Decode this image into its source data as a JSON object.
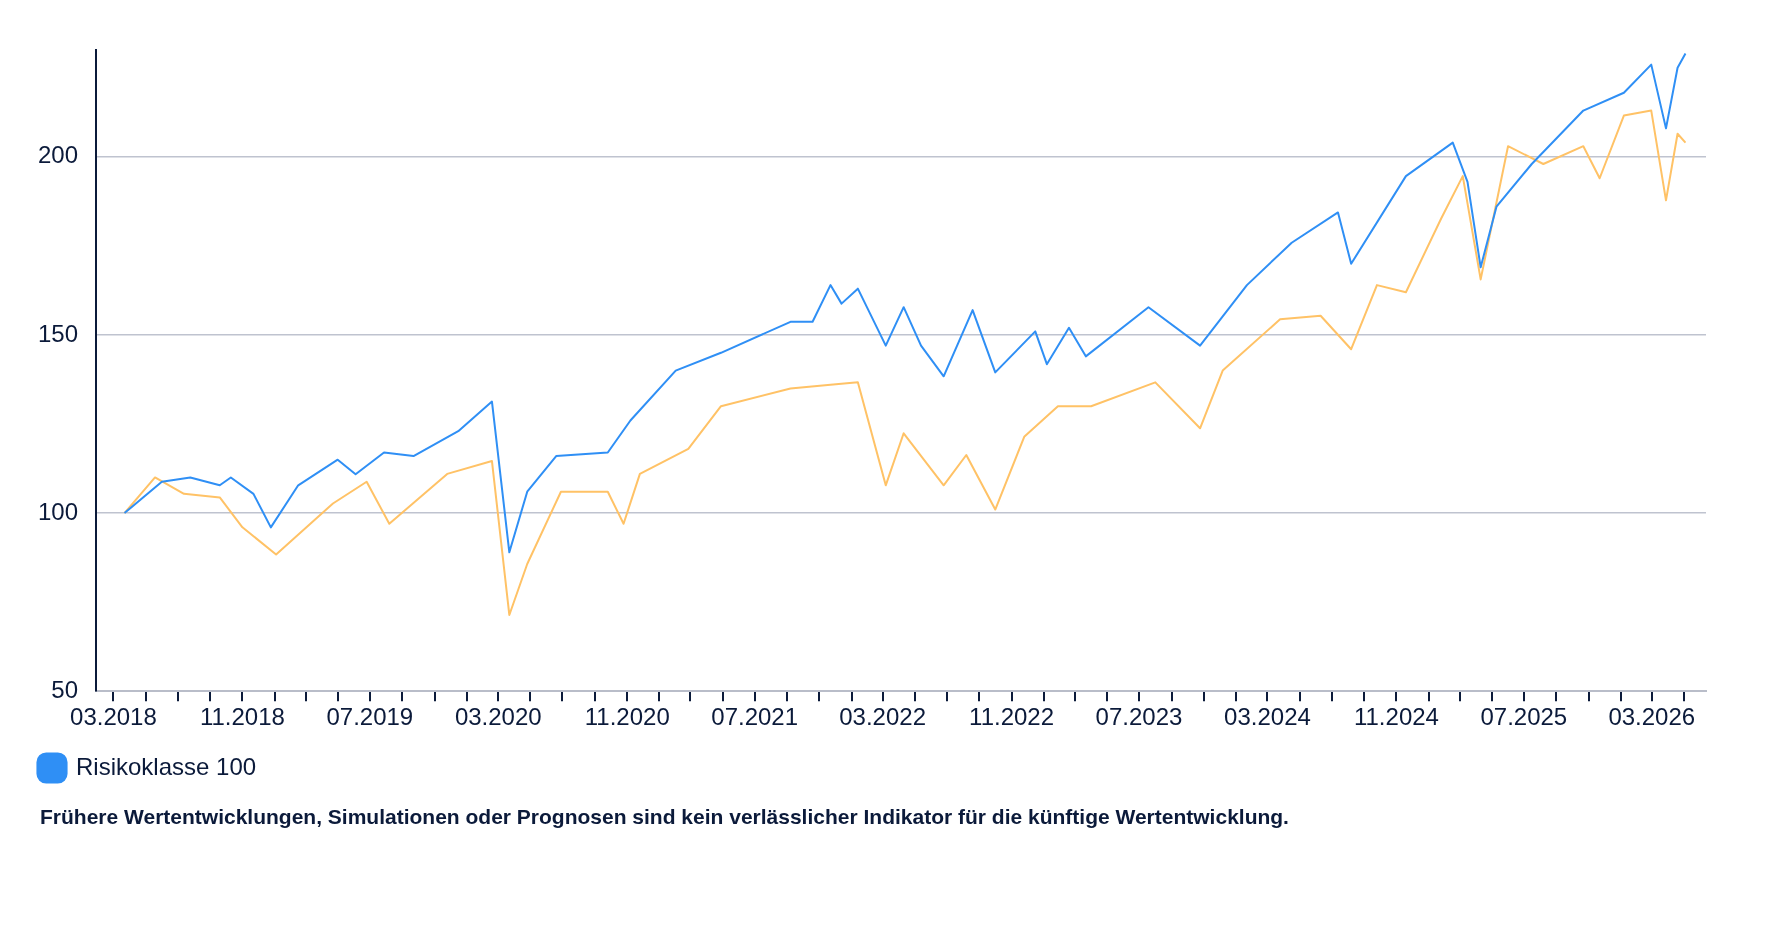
{
  "chart_data": {
    "type": "line",
    "annotations": [
      "Frühere Wertentwicklungen, Simulationen oder Prognosen sind kein verlässlicher Indikator für die künftige Wertentwicklung."
    ],
    "xlim": [
      "2018-01-27",
      "2026-06-12"
    ],
    "xticks": [
      {
        "value": "2018-03",
        "label": "03.2018"
      },
      {
        "value": "2018-05",
        "label": null
      },
      {
        "value": "2018-07",
        "label": null
      },
      {
        "value": "2018-09",
        "label": null
      },
      {
        "value": "2018-11",
        "label": "11.2018"
      },
      {
        "value": "2019-01",
        "label": null
      },
      {
        "value": "2019-03",
        "label": null
      },
      {
        "value": "2019-05",
        "label": null
      },
      {
        "value": "2019-07",
        "label": "07.2019"
      },
      {
        "value": "2019-09",
        "label": null
      },
      {
        "value": "2019-11",
        "label": null
      },
      {
        "value": "2020-01",
        "label": null
      },
      {
        "value": "2020-03",
        "label": "03.2020"
      },
      {
        "value": "2020-05",
        "label": null
      },
      {
        "value": "2020-07",
        "label": null
      },
      {
        "value": "2020-09",
        "label": null
      },
      {
        "value": "2020-11",
        "label": "11.2020"
      },
      {
        "value": "2021-01",
        "label": null
      },
      {
        "value": "2021-03",
        "label": null
      },
      {
        "value": "2021-05",
        "label": null
      },
      {
        "value": "2021-07",
        "label": "07.2021"
      },
      {
        "value": "2021-09",
        "label": null
      },
      {
        "value": "2021-11",
        "label": null
      },
      {
        "value": "2022-01",
        "label": null
      },
      {
        "value": "2022-03",
        "label": "03.2022"
      },
      {
        "value": "2022-05",
        "label": null
      },
      {
        "value": "2022-07",
        "label": null
      },
      {
        "value": "2022-09",
        "label": null
      },
      {
        "value": "2022-11",
        "label": "11.2022"
      },
      {
        "value": "2023-01",
        "label": null
      },
      {
        "value": "2023-03",
        "label": null
      },
      {
        "value": "2023-05",
        "label": null
      },
      {
        "value": "2023-07",
        "label": "07.2023"
      },
      {
        "value": "2023-09",
        "label": null
      },
      {
        "value": "2023-11",
        "label": null
      },
      {
        "value": "2024-01",
        "label": null
      },
      {
        "value": "2024-03",
        "label": "03.2024"
      },
      {
        "value": "2024-05",
        "label": null
      },
      {
        "value": "2024-07",
        "label": null
      },
      {
        "value": "2024-09",
        "label": null
      },
      {
        "value": "2024-11",
        "label": "11.2024"
      },
      {
        "value": "2025-01",
        "label": null
      },
      {
        "value": "2025-03",
        "label": null
      },
      {
        "value": "2025-05",
        "label": null
      },
      {
        "value": "2025-07",
        "label": "07.2025"
      },
      {
        "value": "2025-09",
        "label": null
      },
      {
        "value": "2025-11",
        "label": null
      },
      {
        "value": "2026-01",
        "label": null
      },
      {
        "value": "2026-03",
        "label": "03.2026"
      },
      {
        "value": "2026-05",
        "label": null
      }
    ],
    "ylim": [
      50,
      230
    ],
    "yticks": [
      50,
      100,
      150,
      200
    ],
    "grid": "y",
    "legend": "bottom left",
    "marker": "none",
    "line_style": "solid",
    "series": [
      {
        "name": "Risikoklasse 100",
        "color": "#2f8ff5",
        "x": [
          "2018-03-22",
          "2018-06-01",
          "2018-07-25",
          "2018-09-19",
          "2018-10-10",
          "2018-11-22",
          "2018-12-25",
          "2019-02-15",
          "2019-05-01",
          "2019-06-04",
          "2019-07-28",
          "2019-09-22",
          "2019-12-16",
          "2020-02-18",
          "2020-03-22",
          "2020-04-25",
          "2020-06-19",
          "2020-09-25",
          "2020-11-07",
          "2021-02-01",
          "2021-04-28",
          "2021-09-07",
          "2021-10-19",
          "2021-11-22",
          "2021-12-13",
          "2022-01-13",
          "2022-03-07",
          "2022-04-10",
          "2022-05-13",
          "2022-06-25",
          "2022-08-19",
          "2022-10-01",
          "2022-12-16",
          "2023-01-07",
          "2023-02-18",
          "2023-03-22",
          "2023-07-19",
          "2023-10-25",
          "2024-01-22",
          "2024-04-16",
          "2024-07-13",
          "2024-08-07",
          "2024-11-19",
          "2025-02-16",
          "2025-03-16",
          "2025-04-10",
          "2025-05-10",
          "2025-07-16",
          "2025-10-22",
          "2026-01-07",
          "2026-02-28",
          "2026-03-28",
          "2026-04-19",
          "2026-05-04"
        ],
        "values": [
          100,
          108.8,
          110,
          107.8,
          110,
          105.4,
          96,
          107.8,
          115,
          110.9,
          117,
          116,
          123,
          131.3,
          89,
          106,
          116,
          117,
          126,
          140,
          145,
          153.7,
          153.7,
          164,
          158.8,
          163,
          147,
          157.8,
          147,
          138.4,
          157,
          139.5,
          151,
          141.8,
          152,
          144,
          157.8,
          147,
          164,
          175.9,
          184.4,
          170,
          194.6,
          204,
          193,
          169,
          186,
          198,
          213,
          218,
          225.9,
          208,
          225,
          229
        ]
      },
      {
        "color": "#ffc266",
        "x": [
          "2018-03-22",
          "2018-05-19",
          "2018-07-13",
          "2018-09-19",
          "2018-11-01",
          "2019-01-04",
          "2019-04-22",
          "2019-06-25",
          "2019-08-07",
          "2019-11-25",
          "2020-02-18",
          "2020-03-22",
          "2020-04-25",
          "2020-06-28",
          "2020-09-25",
          "2020-10-25",
          "2020-11-25",
          "2021-02-25",
          "2021-04-28",
          "2021-09-07",
          "2021-11-22",
          "2022-01-13",
          "2022-03-07",
          "2022-04-10",
          "2022-06-25",
          "2022-08-07",
          "2022-10-01",
          "2022-11-25",
          "2023-01-28",
          "2023-04-01",
          "2023-08-01",
          "2023-10-25",
          "2023-12-07",
          "2024-03-25",
          "2024-06-10",
          "2024-08-07",
          "2024-09-25",
          "2024-11-19",
          "2025-01-25",
          "2025-03-07",
          "2025-04-10",
          "2025-06-01",
          "2025-08-07",
          "2025-10-22",
          "2025-11-22",
          "2026-01-07",
          "2026-02-28",
          "2026-03-28",
          "2026-04-19",
          "2026-05-04"
        ],
        "values": [
          100,
          110,
          105.4,
          104.4,
          96,
          88.4,
          102.7,
          108.8,
          97,
          111,
          114.6,
          71.4,
          85.7,
          106,
          106,
          97,
          111,
          118,
          130,
          135,
          136,
          136.7,
          107.8,
          122.4,
          107.8,
          116.3,
          101,
          121.4,
          130,
          130,
          136.7,
          123.8,
          140,
          154.4,
          155.4,
          146,
          164,
          162,
          182.7,
          194.6,
          165.6,
          203,
          198,
          203,
          194,
          211.6,
          213,
          187.8,
          206.5,
          204
        ]
      }
    ]
  }
}
